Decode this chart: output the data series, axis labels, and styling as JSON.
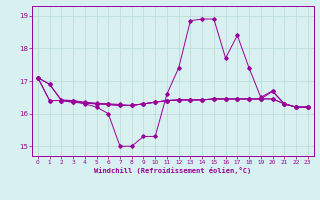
{
  "xlabel": "Windchill (Refroidissement éolien,°C)",
  "bg_color": "#d8f0f0",
  "line_color": "#990099",
  "grid_color": "#b8d8d8",
  "xlim": [
    -0.5,
    23.5
  ],
  "ylim": [
    14.7,
    19.3
  ],
  "yticks": [
    15,
    16,
    17,
    18,
    19
  ],
  "xticks": [
    0,
    1,
    2,
    3,
    4,
    5,
    6,
    7,
    8,
    9,
    10,
    11,
    12,
    13,
    14,
    15,
    16,
    17,
    18,
    19,
    20,
    21,
    22,
    23
  ],
  "series": [
    {
      "x": [
        0,
        1,
        2,
        3,
        4,
        5,
        6,
        7,
        8,
        9,
        10,
        11,
        12,
        13,
        14,
        15,
        16,
        17,
        18,
        19,
        20,
        21,
        22,
        23
      ],
      "y": [
        17.1,
        16.9,
        16.4,
        16.4,
        16.3,
        16.2,
        16.0,
        15.0,
        15.0,
        15.3,
        15.3,
        16.6,
        17.4,
        18.85,
        18.9,
        18.9,
        17.7,
        18.4,
        17.4,
        16.5,
        16.7,
        16.3,
        16.2,
        16.2
      ]
    },
    {
      "x": [
        0,
        1,
        2,
        3,
        4,
        5,
        6,
        7,
        8,
        9,
        10,
        11,
        12,
        13,
        14,
        15,
        16,
        17,
        18,
        19,
        20,
        21,
        22,
        23
      ],
      "y": [
        17.1,
        16.4,
        16.4,
        16.35,
        16.32,
        16.3,
        16.28,
        16.25,
        16.25,
        16.3,
        16.35,
        16.4,
        16.42,
        16.42,
        16.42,
        16.45,
        16.45,
        16.45,
        16.45,
        16.45,
        16.45,
        16.3,
        16.2,
        16.2
      ]
    },
    {
      "x": [
        0,
        1,
        2,
        3,
        4,
        5,
        6,
        7,
        8,
        9,
        10,
        11,
        12,
        13,
        14,
        15,
        16,
        17,
        18,
        19,
        20,
        21,
        22,
        23
      ],
      "y": [
        17.1,
        16.4,
        16.4,
        16.35,
        16.32,
        16.3,
        16.28,
        16.25,
        16.25,
        16.3,
        16.35,
        16.4,
        16.42,
        16.42,
        16.42,
        16.45,
        16.45,
        16.45,
        16.45,
        16.45,
        16.45,
        16.3,
        16.2,
        16.2
      ]
    },
    {
      "x": [
        0,
        1,
        2,
        3,
        4,
        5,
        6,
        7,
        8,
        9,
        10,
        11,
        12,
        13,
        14,
        15,
        16,
        17,
        18,
        19,
        20,
        21,
        22,
        23
      ],
      "y": [
        17.1,
        16.9,
        16.42,
        16.4,
        16.35,
        16.32,
        16.3,
        16.28,
        16.25,
        16.3,
        16.35,
        16.4,
        16.42,
        16.42,
        16.42,
        16.45,
        16.45,
        16.45,
        16.45,
        16.45,
        16.68,
        16.3,
        16.2,
        16.2
      ]
    }
  ]
}
